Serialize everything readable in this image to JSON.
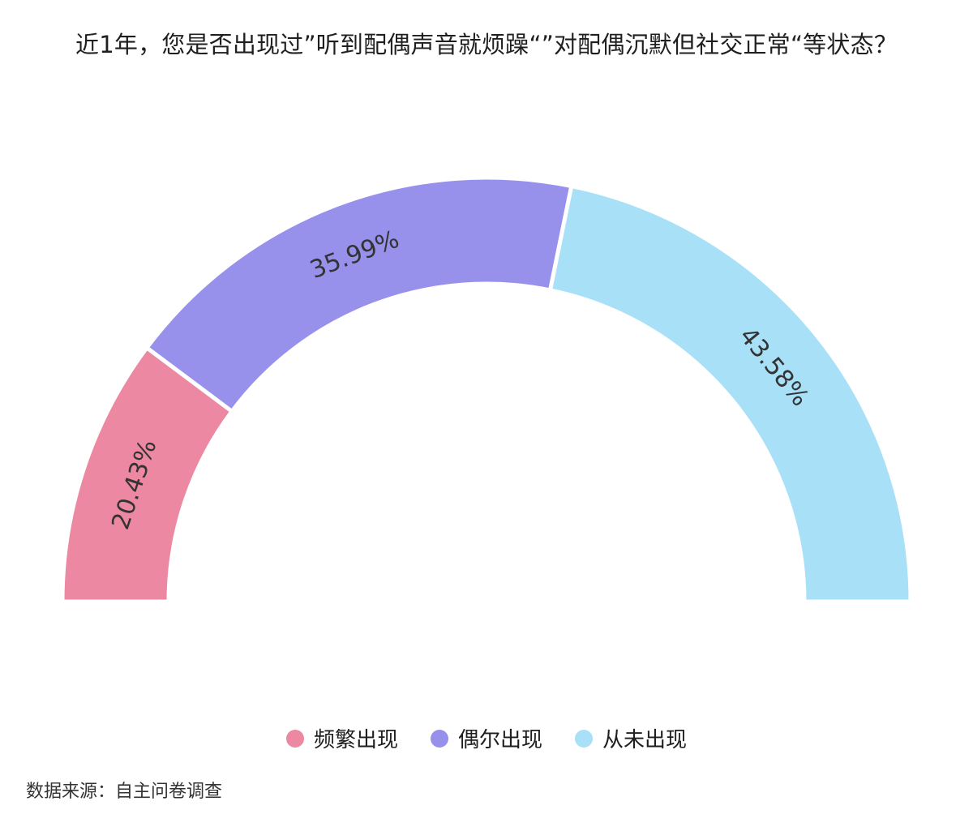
{
  "title": "近1年，您是否出现过”听到配偶声音就烦躁“”对配偶沉默但社交正常“等状态？",
  "source_label": "数据来源：自主问卷调查",
  "chart_data": {
    "type": "pie",
    "variant": "semicircle-donut",
    "categories": [
      "频繁出现",
      "偶尔出现",
      "从未出现"
    ],
    "values": [
      20.43,
      35.99,
      43.58
    ],
    "value_labels": [
      "20.43%",
      "35.99%",
      "43.58%"
    ],
    "colors": [
      "#EC88A1",
      "#9791EC",
      "#A8E0F8"
    ],
    "legend_position": "bottom"
  }
}
